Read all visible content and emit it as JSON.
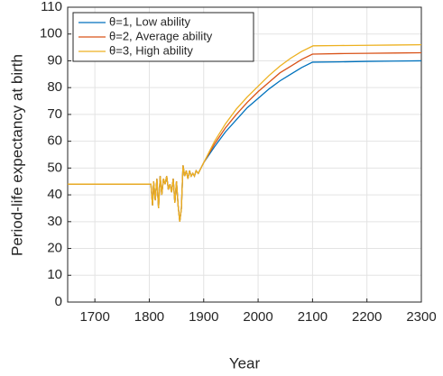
{
  "chart_data": {
    "type": "line",
    "xlabel": "Year",
    "ylabel": "Period-life expectancy at birth",
    "x": [
      1650,
      1700,
      1750,
      1800,
      1803,
      1806,
      1808,
      1811,
      1814,
      1817,
      1820,
      1823,
      1826,
      1829,
      1832,
      1835,
      1838,
      1841,
      1844,
      1847,
      1850,
      1853,
      1856,
      1859,
      1862,
      1865,
      1868,
      1871,
      1874,
      1877,
      1880,
      1883,
      1886,
      1890,
      1895,
      1900,
      1920,
      1940,
      1960,
      1980,
      2000,
      2020,
      2040,
      2060,
      2080,
      2100,
      2101,
      2150,
      2200,
      2250,
      2300
    ],
    "series": [
      {
        "name": "θ=1, Low ability",
        "color": "#0072bd",
        "values": [
          44,
          44,
          44,
          44,
          44,
          36,
          45,
          38,
          46,
          35,
          47,
          40,
          46,
          44,
          47,
          42,
          44,
          41,
          46,
          37,
          45,
          36,
          30,
          35,
          51,
          47,
          49,
          46,
          49,
          47,
          48,
          47,
          49,
          48,
          50,
          52,
          58,
          63.5,
          68,
          72.5,
          76,
          79.5,
          82.5,
          85,
          87.5,
          89.5,
          89.5,
          89.6,
          89.8,
          89.9,
          90
        ]
      },
      {
        "name": "θ=2, Average ability",
        "color": "#d95319",
        "values": [
          44,
          44,
          44,
          44,
          44,
          36,
          45,
          38,
          46,
          35,
          47,
          40,
          46,
          44,
          47,
          42,
          44,
          41,
          46,
          37,
          45,
          36,
          30,
          35,
          51,
          47,
          49,
          46,
          49,
          47,
          48,
          47,
          49,
          48,
          50,
          52,
          59,
          65,
          70,
          74.5,
          78.5,
          82,
          85.5,
          88,
          90.5,
          92.5,
          92.5,
          92.7,
          92.8,
          92.9,
          93
        ]
      },
      {
        "name": "θ=3, High ability",
        "color": "#edb120",
        "values": [
          44,
          44,
          44,
          44,
          44,
          36,
          45,
          38,
          46,
          35,
          47,
          40,
          46,
          44,
          47,
          42,
          44,
          41,
          46,
          37,
          45,
          36,
          30,
          35,
          51,
          47,
          49,
          46,
          49,
          47,
          48,
          47,
          49,
          48,
          50,
          52,
          60,
          66.5,
          72,
          76.5,
          80.5,
          84.5,
          88,
          91,
          93.5,
          95.5,
          95.6,
          95.7,
          95.8,
          95.9,
          96
        ]
      }
    ],
    "xlim": [
      1650,
      2300
    ],
    "xticks": [
      1700,
      1800,
      1900,
      2000,
      2100,
      2200,
      2300
    ],
    "ylim": [
      0,
      110
    ],
    "yticks": [
      0,
      10,
      20,
      30,
      40,
      50,
      60,
      70,
      80,
      90,
      100,
      110
    ],
    "grid": true,
    "legend": "upper left"
  }
}
